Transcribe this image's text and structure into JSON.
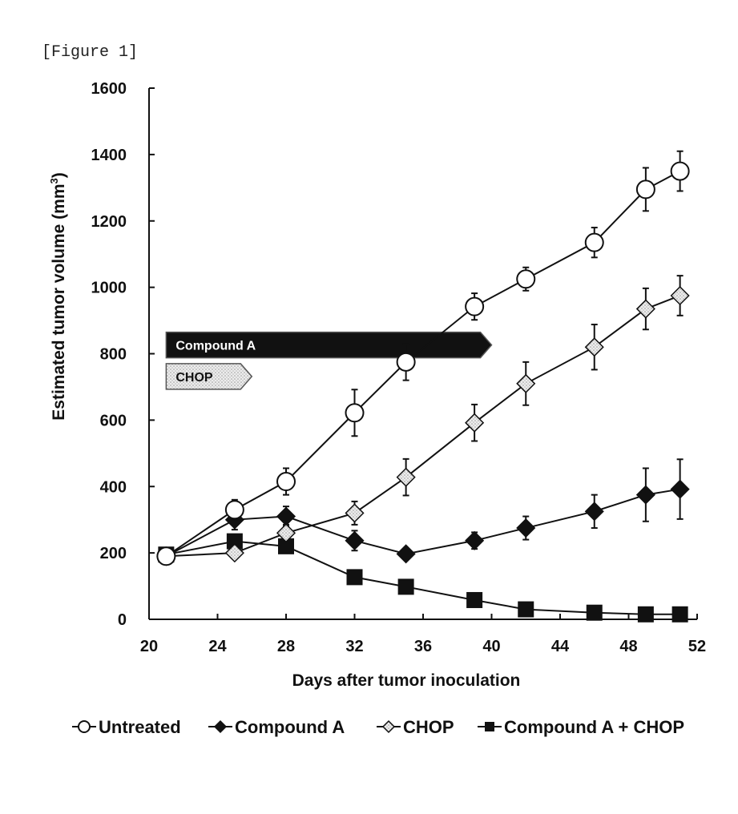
{
  "figure_label": "[Figure 1]",
  "chart_data": {
    "type": "line",
    "xlabel": "Days after tumor inoculation",
    "ylabel": "Estimated tumor volume (mm",
    "ylabel_sup": "3",
    "ylabel_close": ")",
    "xlim": [
      20,
      52
    ],
    "ylim": [
      0,
      1600
    ],
    "xticks": [
      20,
      24,
      28,
      32,
      36,
      40,
      44,
      48,
      52
    ],
    "yticks": [
      0,
      200,
      400,
      600,
      800,
      1000,
      1200,
      1400,
      1600
    ],
    "grid": false,
    "legend_position": "bottom",
    "series": [
      {
        "name": "Untreated",
        "marker": "open-circle",
        "color": "#111111",
        "x": [
          21,
          25,
          28,
          32,
          35,
          39,
          42,
          46,
          49,
          51
        ],
        "y": [
          190,
          330,
          415,
          622,
          775,
          942,
          1025,
          1135,
          1295,
          1350
        ],
        "err": [
          10,
          30,
          40,
          70,
          55,
          40,
          35,
          45,
          65,
          60
        ]
      },
      {
        "name": "Compound A",
        "marker": "filled-diamond",
        "color": "#111111",
        "x": [
          21,
          25,
          28,
          32,
          35,
          39,
          42,
          46,
          49,
          51
        ],
        "y": [
          190,
          300,
          310,
          237,
          197,
          237,
          275,
          325,
          375,
          392
        ],
        "err": [
          10,
          30,
          30,
          30,
          15,
          25,
          35,
          50,
          80,
          90
        ]
      },
      {
        "name": "CHOP",
        "marker": "open-diamond",
        "color": "#111111",
        "x": [
          21,
          25,
          28,
          32,
          35,
          39,
          42,
          46,
          49,
          51
        ],
        "y": [
          190,
          200,
          260,
          320,
          428,
          592,
          710,
          820,
          935,
          975
        ],
        "err": [
          10,
          15,
          25,
          35,
          55,
          55,
          65,
          68,
          62,
          60
        ]
      },
      {
        "name": "Compound A + CHOP",
        "marker": "filled-square",
        "color": "#111111",
        "x": [
          21,
          25,
          28,
          32,
          35,
          39,
          42,
          46,
          49,
          51
        ],
        "y": [
          195,
          235,
          220,
          127,
          98,
          58,
          30,
          20,
          15,
          15
        ],
        "err": [
          10,
          20,
          20,
          15,
          12,
          10,
          8,
          6,
          5,
          5
        ]
      }
    ],
    "annotations": [
      {
        "label": "Compound A",
        "x_start": 21,
        "x_end": 40,
        "style": "dark"
      },
      {
        "label": "CHOP",
        "x_start": 21,
        "x_end": 26,
        "style": "light"
      }
    ]
  }
}
